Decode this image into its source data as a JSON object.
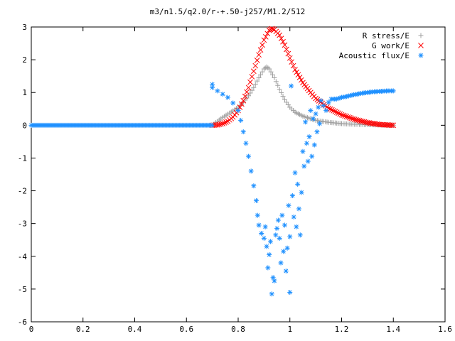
{
  "chart_data": {
    "type": "scatter",
    "title": "m3/n1.5/q2.0/r-+.50-j257/M1.2/512",
    "xlabel": "",
    "ylabel": "",
    "xlim": [
      0,
      1.6
    ],
    "ylim": [
      -6,
      3
    ],
    "xticks": [
      "0",
      "0.2",
      "0.4",
      "0.6",
      "0.8",
      "1",
      "1.2",
      "1.4",
      "1.6"
    ],
    "yticks": [
      "3",
      "2",
      "1",
      "0",
      "-1",
      "-2",
      "-3",
      "-4",
      "-5",
      "-6"
    ],
    "grid": false,
    "legend_position": "top-right",
    "series": [
      {
        "name": "R stress/E",
        "marker": "+",
        "color": "#a0a0a0",
        "points": [
          [
            0.7,
            0.0
          ],
          [
            0.72,
            0.12
          ],
          [
            0.74,
            0.24
          ],
          [
            0.76,
            0.34
          ],
          [
            0.78,
            0.44
          ],
          [
            0.8,
            0.55
          ],
          [
            0.82,
            0.7
          ],
          [
            0.84,
            0.9
          ],
          [
            0.86,
            1.15
          ],
          [
            0.88,
            1.45
          ],
          [
            0.9,
            1.72
          ],
          [
            0.91,
            1.78
          ],
          [
            0.92,
            1.72
          ],
          [
            0.94,
            1.45
          ],
          [
            0.96,
            1.1
          ],
          [
            0.98,
            0.78
          ],
          [
            1.0,
            0.55
          ],
          [
            1.02,
            0.4
          ],
          [
            1.05,
            0.28
          ],
          [
            1.08,
            0.2
          ],
          [
            1.1,
            0.15
          ],
          [
            1.15,
            0.09
          ],
          [
            1.2,
            0.05
          ],
          [
            1.25,
            0.03
          ],
          [
            1.3,
            0.02
          ],
          [
            1.35,
            0.01
          ],
          [
            1.4,
            0.0
          ]
        ]
      },
      {
        "name": "G work/E",
        "marker": "x",
        "color": "#ff0000",
        "points": [
          [
            0.7,
            0.0
          ],
          [
            0.72,
            0.01
          ],
          [
            0.74,
            0.05
          ],
          [
            0.76,
            0.12
          ],
          [
            0.78,
            0.25
          ],
          [
            0.8,
            0.45
          ],
          [
            0.82,
            0.75
          ],
          [
            0.84,
            1.15
          ],
          [
            0.86,
            1.65
          ],
          [
            0.88,
            2.15
          ],
          [
            0.9,
            2.6
          ],
          [
            0.92,
            2.9
          ],
          [
            0.93,
            2.95
          ],
          [
            0.94,
            2.92
          ],
          [
            0.96,
            2.75
          ],
          [
            0.98,
            2.45
          ],
          [
            1.0,
            2.05
          ],
          [
            1.02,
            1.7
          ],
          [
            1.05,
            1.3
          ],
          [
            1.08,
            1.0
          ],
          [
            1.1,
            0.82
          ],
          [
            1.15,
            0.52
          ],
          [
            1.2,
            0.32
          ],
          [
            1.25,
            0.18
          ],
          [
            1.3,
            0.08
          ],
          [
            1.35,
            0.02
          ],
          [
            1.4,
            0.0
          ]
        ]
      },
      {
        "name": "Acoustic flux/E",
        "marker": "*",
        "color": "#1e90ff",
        "points": [
          [
            0.7,
            1.25
          ],
          [
            0.7,
            1.15
          ],
          [
            0.72,
            1.05
          ],
          [
            0.74,
            0.95
          ],
          [
            0.76,
            0.85
          ],
          [
            0.78,
            0.68
          ],
          [
            0.8,
            0.45
          ],
          [
            0.81,
            0.15
          ],
          [
            0.82,
            -0.2
          ],
          [
            0.83,
            -0.55
          ],
          [
            0.84,
            -0.95
          ],
          [
            0.85,
            -1.4
          ],
          [
            0.86,
            -1.85
          ],
          [
            0.87,
            -2.3
          ],
          [
            0.875,
            -2.75
          ],
          [
            0.88,
            -3.05
          ],
          [
            0.89,
            -3.3
          ],
          [
            0.9,
            -3.45
          ],
          [
            0.905,
            -3.1
          ],
          [
            0.91,
            -3.7
          ],
          [
            0.915,
            -4.35
          ],
          [
            0.92,
            -3.95
          ],
          [
            0.925,
            -3.55
          ],
          [
            0.93,
            -5.15
          ],
          [
            0.935,
            -4.65
          ],
          [
            0.94,
            -4.75
          ],
          [
            0.945,
            -3.35
          ],
          [
            0.95,
            -3.15
          ],
          [
            0.955,
            -2.9
          ],
          [
            0.96,
            -3.45
          ],
          [
            0.965,
            -4.2
          ],
          [
            0.97,
            -2.75
          ],
          [
            0.975,
            -3.85
          ],
          [
            0.98,
            -3.05
          ],
          [
            0.985,
            -4.45
          ],
          [
            0.99,
            -3.75
          ],
          [
            0.995,
            -2.45
          ],
          [
            1.0,
            -3.4
          ],
          [
            1.0,
            -5.1
          ],
          [
            1.005,
            1.2
          ],
          [
            1.01,
            -2.15
          ],
          [
            1.015,
            -2.8
          ],
          [
            1.02,
            -1.45
          ],
          [
            1.025,
            -3.1
          ],
          [
            1.03,
            -1.8
          ],
          [
            1.035,
            -2.55
          ],
          [
            1.04,
            -3.35
          ],
          [
            1.045,
            -2.05
          ],
          [
            1.05,
            -0.8
          ],
          [
            1.055,
            -1.25
          ],
          [
            1.06,
            0.1
          ],
          [
            1.065,
            -0.55
          ],
          [
            1.07,
            -1.1
          ],
          [
            1.075,
            -0.35
          ],
          [
            1.08,
            0.45
          ],
          [
            1.085,
            -0.95
          ],
          [
            1.09,
            0.2
          ],
          [
            1.095,
            -0.6
          ],
          [
            1.1,
            0.35
          ],
          [
            1.105,
            -0.2
          ],
          [
            1.11,
            0.55
          ],
          [
            1.115,
            0.05
          ],
          [
            1.12,
            0.75
          ],
          [
            1.13,
            0.6
          ],
          [
            1.14,
            0.45
          ],
          [
            1.15,
            0.7
          ],
          [
            1.16,
            0.8
          ],
          [
            1.18,
            0.8
          ],
          [
            1.2,
            0.85
          ],
          [
            1.22,
            0.88
          ],
          [
            1.24,
            0.92
          ],
          [
            1.26,
            0.95
          ],
          [
            1.28,
            0.98
          ],
          [
            1.3,
            1.0
          ],
          [
            1.32,
            1.02
          ],
          [
            1.34,
            1.03
          ],
          [
            1.36,
            1.04
          ],
          [
            1.38,
            1.05
          ],
          [
            1.4,
            1.05
          ]
        ]
      }
    ]
  },
  "legend": [
    {
      "label": "R stress/E",
      "marker": "+",
      "color": "#a0a0a0"
    },
    {
      "label": "G work/E",
      "marker": "x",
      "color": "#ff0000"
    },
    {
      "label": "Acoustic flux/E",
      "marker": "*",
      "color": "#1e90ff"
    }
  ]
}
